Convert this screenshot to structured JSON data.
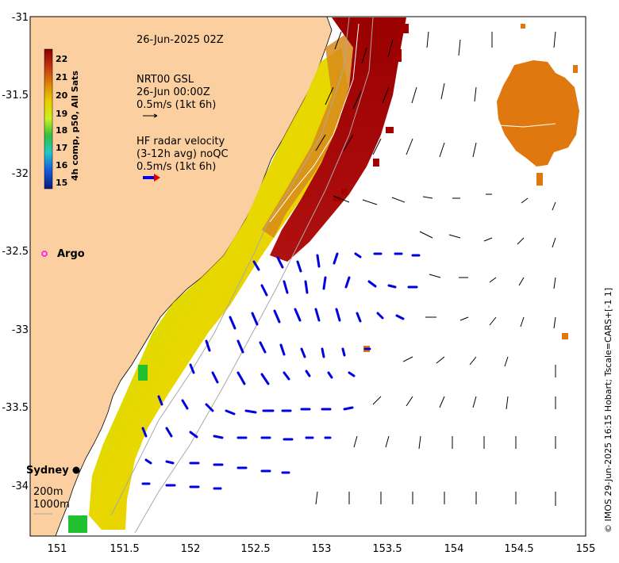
{
  "map": {
    "timestamp": "26-Jun-2025 02Z",
    "gsl": {
      "title": "NRT00 GSL",
      "time": "26-Jun 00:00Z",
      "scale": "0.5m/s (1kt 6h)"
    },
    "radar": {
      "title": "HF radar velocity",
      "subtitle": "(3-12h avg) noQC",
      "scale": "0.5m/s (1kt 6h)"
    },
    "argo_label": "Argo",
    "city": "Sydney",
    "isobaths": [
      "200m",
      "1000m"
    ],
    "colorbar": {
      "label": "4h comp, p50, All Sats",
      "ticks": [
        "22",
        "21",
        "20",
        "19",
        "18",
        "17",
        "16",
        "15"
      ],
      "colors": [
        "#8b0000",
        "#b22222",
        "#e0860a",
        "#e8d000",
        "#d9f020",
        "#40c040",
        "#20c8c8",
        "#1560e0",
        "#0a1a80"
      ]
    },
    "credit": "© IMOS 29-Jun-2025 16:15 Hobart; Tscale=CARS+[-1 1]",
    "x_ticks": [
      "151",
      "151.5",
      "152",
      "152.5",
      "153",
      "153.5",
      "154",
      "154.5",
      "155"
    ],
    "y_ticks": [
      "-31",
      "-31.5",
      "-32",
      "-32.5",
      "-33",
      "-33.5",
      "-34"
    ],
    "colors": {
      "land": "#fbcfa0",
      "radar_vectors": "#0000e0",
      "gsl_vectors": "#000000",
      "argo": "#ff00ff",
      "warm_core": "#a40000",
      "eddy": "#e07810"
    }
  }
}
